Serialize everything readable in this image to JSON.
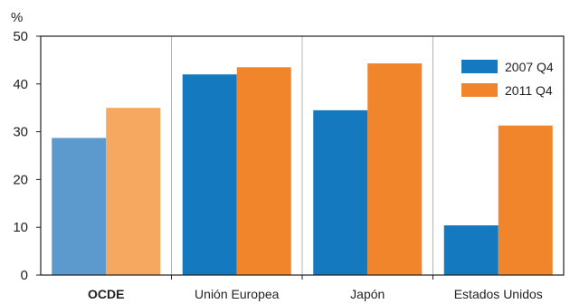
{
  "chart_data": {
    "type": "bar",
    "ylabel": "%",
    "ylim": [
      0,
      50
    ],
    "yticks": [
      0,
      10,
      20,
      30,
      40,
      50
    ],
    "categories": [
      "OCDE",
      "Unión Europea",
      "Japón",
      "Estados Unidos"
    ],
    "highlight_category": "OCDE",
    "series": [
      {
        "name": "2007 Q4",
        "values": [
          28.7,
          42.0,
          34.5,
          10.4
        ]
      },
      {
        "name": "2011 Q4",
        "values": [
          35.0,
          43.5,
          44.3,
          31.3
        ]
      }
    ],
    "legend": {
      "placement": "top-right"
    },
    "grid": {
      "horizontal": false,
      "vertical_separators": true
    },
    "colors": {
      "series": [
        "#1479be",
        "#f0852b"
      ],
      "highlight_series": [
        "#5c99cc",
        "#f6a760"
      ],
      "axis": "#231f20",
      "separator": "#b4b4b4"
    }
  }
}
